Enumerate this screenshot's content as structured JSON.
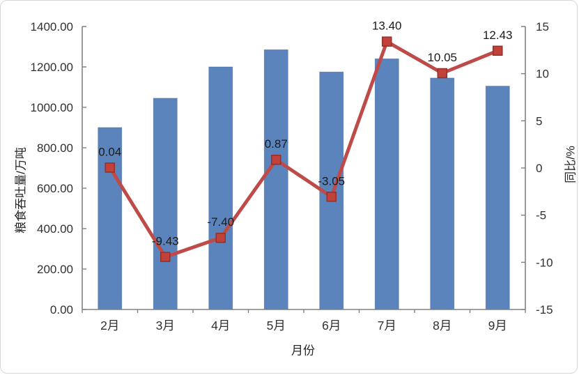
{
  "window": {
    "background": "#ffffff",
    "card_border_color": "#d6d6d6"
  },
  "chart_data": {
    "type": "combo",
    "title": "",
    "categories": [
      "2月",
      "3月",
      "4月",
      "5月",
      "6月",
      "7月",
      "8月",
      "9月"
    ],
    "series": [
      {
        "name": "粮食吞吐量",
        "type": "bar",
        "axis": "left",
        "values": [
          900,
          1045,
          1200,
          1285,
          1175,
          1240,
          1145,
          1105
        ]
      },
      {
        "name": "同比",
        "type": "line",
        "axis": "right",
        "values": [
          0.04,
          -9.43,
          -7.4,
          0.87,
          -3.05,
          13.4,
          10.05,
          12.43
        ],
        "data_labels": [
          "0.04",
          "-9.43",
          "-7.40",
          "0.87",
          "-3.05",
          "13.40",
          "10.05",
          "12.43"
        ]
      }
    ],
    "x_axis": {
      "title": "月份"
    },
    "left_axis": {
      "title": "粮食吞吐量/万吨",
      "min": 0,
      "max": 1400,
      "step": 200,
      "tick_labels": [
        "0.00",
        "200.00",
        "400.00",
        "600.00",
        "800.00",
        "1000.00",
        "1200.00",
        "1400.00"
      ]
    },
    "right_axis": {
      "title": "同比/%",
      "min": -15,
      "max": 15,
      "step": 5,
      "tick_labels": [
        "-15",
        "-10",
        "-5",
        "0",
        "5",
        "10",
        "15"
      ]
    },
    "grid": false,
    "legend": null,
    "colors": {
      "bar_fill": "#5B84BC",
      "bar_border": "#41639B",
      "line": "#BE4B48",
      "marker_fill": "#C0423A",
      "marker_border": "#943028",
      "axis_line": "#808080",
      "tick_text": "#303030",
      "data_label_text": "#1a1a1a"
    }
  }
}
